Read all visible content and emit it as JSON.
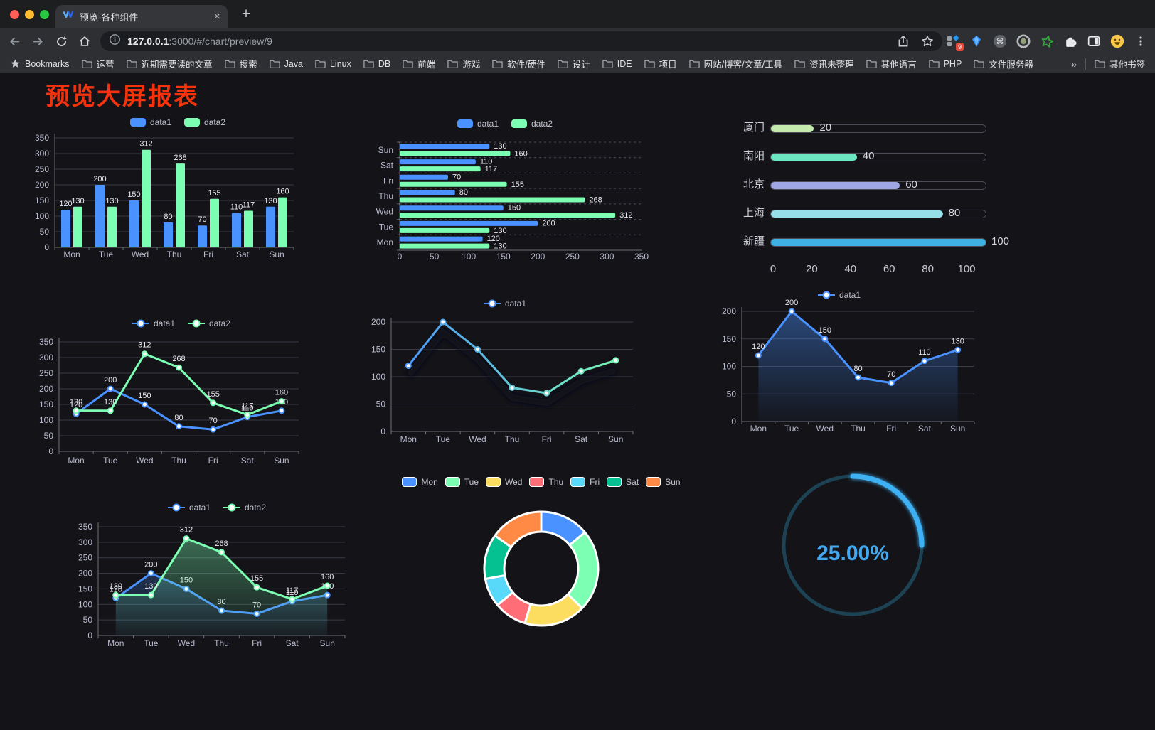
{
  "browser": {
    "tab": {
      "title": "预览-各种组件",
      "close_glyph": "×"
    },
    "new_tab_glyph": "+",
    "url": {
      "host": "127.0.0.1",
      "rest": ":3000/#/chart/preview/9"
    },
    "extension_badge": "9",
    "bookmarks_bar": {
      "bookmarks_label": "Bookmarks",
      "folders": [
        "运营",
        "近期需要读的文章",
        "搜索",
        "Java",
        "Linux",
        "DB",
        "前端",
        "游戏",
        "软件/硬件",
        "设计",
        "IDE",
        "项目",
        "网站/博客/文章/工具",
        "资讯未整理",
        "其他语言",
        "PHP",
        "文件服务器"
      ],
      "overflow": "»",
      "other_bookmarks": "其他书签"
    }
  },
  "page": {
    "title": "预览大屏报表",
    "title_color": "#f4330d"
  },
  "chart_data": [
    {
      "id": "bar-grouped",
      "type": "bar",
      "categories": [
        "Mon",
        "Tue",
        "Wed",
        "Thu",
        "Fri",
        "Sat",
        "Sun"
      ],
      "series": [
        {
          "name": "data1",
          "color": "#4992ff",
          "values": [
            120,
            200,
            150,
            80,
            70,
            110,
            130
          ]
        },
        {
          "name": "data2",
          "color": "#7cffb2",
          "values": [
            130,
            130,
            312,
            268,
            155,
            117,
            160
          ]
        }
      ],
      "ylim": [
        0,
        350
      ],
      "ytick_step": 50,
      "value_labels": true,
      "legend": true,
      "grid": true
    },
    {
      "id": "bar-horizontal",
      "type": "hbar",
      "categories": [
        "Mon",
        "Tue",
        "Wed",
        "Thu",
        "Fri",
        "Sat",
        "Sun"
      ],
      "series": [
        {
          "name": "data1",
          "color": "#4992ff",
          "values": [
            120,
            200,
            150,
            80,
            70,
            110,
            130
          ]
        },
        {
          "name": "data2",
          "color": "#7cffb2",
          "values": [
            130,
            130,
            312,
            268,
            155,
            117,
            160
          ]
        }
      ],
      "xlim": [
        0,
        350
      ],
      "xtick_step": 50,
      "value_labels": true,
      "legend": true
    },
    {
      "id": "city-progress",
      "type": "progress",
      "max": 100,
      "xticks": [
        0,
        20,
        40,
        60,
        80,
        100
      ],
      "items": [
        {
          "label": "厦门",
          "value": 20,
          "color": "#c4ebad"
        },
        {
          "label": "南阳",
          "value": 40,
          "color": "#6be6c1"
        },
        {
          "label": "北京",
          "value": 60,
          "color": "#a0a7e6"
        },
        {
          "label": "上海",
          "value": 80,
          "color": "#96dee8"
        },
        {
          "label": "新疆",
          "value": 100,
          "color": "#3fb1e3"
        }
      ]
    },
    {
      "id": "line-two-series",
      "type": "line",
      "categories": [
        "Mon",
        "Tue",
        "Wed",
        "Thu",
        "Fri",
        "Sat",
        "Sun"
      ],
      "series": [
        {
          "name": "data1",
          "color": "#4992ff",
          "values": [
            120,
            200,
            150,
            80,
            70,
            110,
            130
          ]
        },
        {
          "name": "data2",
          "color": "#7cffb2",
          "values": [
            130,
            130,
            312,
            268,
            155,
            117,
            160
          ]
        }
      ],
      "ylim": [
        0,
        350
      ],
      "ytick_step": 50,
      "value_labels": true,
      "legend": true
    },
    {
      "id": "line-gradient",
      "type": "line",
      "categories": [
        "Mon",
        "Tue",
        "Wed",
        "Thu",
        "Fri",
        "Sat",
        "Sun"
      ],
      "series": [
        {
          "name": "data1",
          "color": "#4992ff",
          "gradient": [
            "#4992ff",
            "#7cffb2"
          ],
          "values": [
            120,
            200,
            150,
            80,
            70,
            110,
            130
          ]
        }
      ],
      "ylim": [
        0,
        200
      ],
      "ytick_step": 50,
      "value_labels": false,
      "legend": true,
      "shadow": true
    },
    {
      "id": "area-single",
      "type": "line",
      "categories": [
        "Mon",
        "Tue",
        "Wed",
        "Thu",
        "Fri",
        "Sat",
        "Sun"
      ],
      "series": [
        {
          "name": "data1",
          "color": "#4992ff",
          "area": true,
          "values": [
            120,
            200,
            150,
            80,
            70,
            110,
            130
          ]
        }
      ],
      "ylim": [
        0,
        200
      ],
      "ytick_step": 50,
      "value_labels": true,
      "legend": true
    },
    {
      "id": "line-area-two",
      "type": "line",
      "categories": [
        "Mon",
        "Tue",
        "Wed",
        "Thu",
        "Fri",
        "Sat",
        "Sun"
      ],
      "series": [
        {
          "name": "data1",
          "color": "#4992ff",
          "area": true,
          "values": [
            120,
            200,
            150,
            80,
            70,
            110,
            130
          ]
        },
        {
          "name": "data2",
          "color": "#7cffb2",
          "area": true,
          "values": [
            130,
            130,
            312,
            268,
            155,
            117,
            160
          ]
        }
      ],
      "ylim": [
        0,
        350
      ],
      "ytick_step": 50,
      "value_labels": true,
      "legend": true
    },
    {
      "id": "weekday-donut",
      "type": "donut",
      "legend": true,
      "items": [
        {
          "label": "Mon",
          "value": 120,
          "color": "#4992ff"
        },
        {
          "label": "Tue",
          "value": 200,
          "color": "#7cffb2"
        },
        {
          "label": "Wed",
          "value": 150,
          "color": "#fddd60"
        },
        {
          "label": "Thu",
          "value": 80,
          "color": "#ff6e76"
        },
        {
          "label": "Fri",
          "value": 70,
          "color": "#58d9f9"
        },
        {
          "label": "Sat",
          "value": 110,
          "color": "#05c091"
        },
        {
          "label": "Sun",
          "value": 130,
          "color": "#ff8a45"
        }
      ]
    },
    {
      "id": "percent-gauge",
      "type": "gauge",
      "value": 25,
      "max": 100,
      "label": "25.00%",
      "color": "#3cb1f4",
      "track_color": "#1c4254",
      "text_color": "#41a8f0"
    }
  ]
}
